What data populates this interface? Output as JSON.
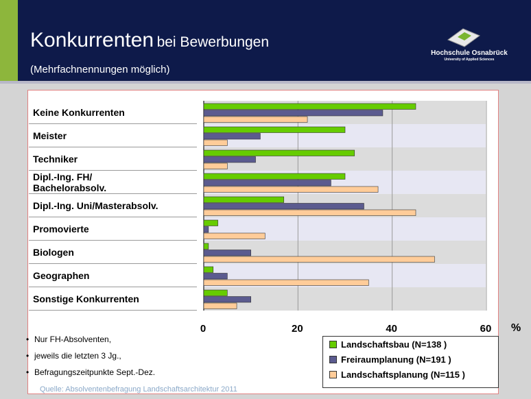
{
  "header": {
    "title": "Konkurrenten",
    "title_suffix": "bei Bewerbungen",
    "subtitle": "(Mehrfachnennungen möglich)",
    "logo_name": "Hochschule Osnabrück",
    "logo_tagline": "University of Applied Sciences"
  },
  "chart_data": {
    "type": "bar",
    "orientation": "horizontal",
    "categories": [
      "Keine Konkurrenten",
      "Meister",
      "Techniker",
      "Dipl.-Ing. FH/\nBachelorabsolv.",
      "Dipl.-Ing. Uni/Masterabsolv.",
      "Promovierte",
      "Biologen",
      "Geographen",
      "Sonstige Konkurrenten"
    ],
    "series": [
      {
        "name": "Landschaftsbau (N=138 )",
        "color": "#66cc00",
        "values": [
          45,
          30,
          32,
          30,
          17,
          3,
          1,
          2,
          5
        ]
      },
      {
        "name": "Freiraumplanung (N=191 )",
        "color": "#5b5b8f",
        "values": [
          38,
          12,
          11,
          27,
          34,
          1,
          10,
          5,
          10
        ]
      },
      {
        "name": "Landschaftsplanung (N=115 )",
        "color": "#ffcc99",
        "values": [
          22,
          5,
          5,
          37,
          45,
          13,
          49,
          35,
          7
        ]
      }
    ],
    "xlim": [
      0,
      60
    ],
    "xticks": [
      0,
      20,
      40,
      60
    ],
    "axis_unit": "%",
    "grid": true
  },
  "notes": [
    "Nur FH-Absolventen,",
    "jeweils die letzten 3 Jg.,",
    "Befragungszeitpunkte Sept.-Dez."
  ],
  "source": "Quelle: Absolventenbefragung Landschaftsarchitektur 2011"
}
